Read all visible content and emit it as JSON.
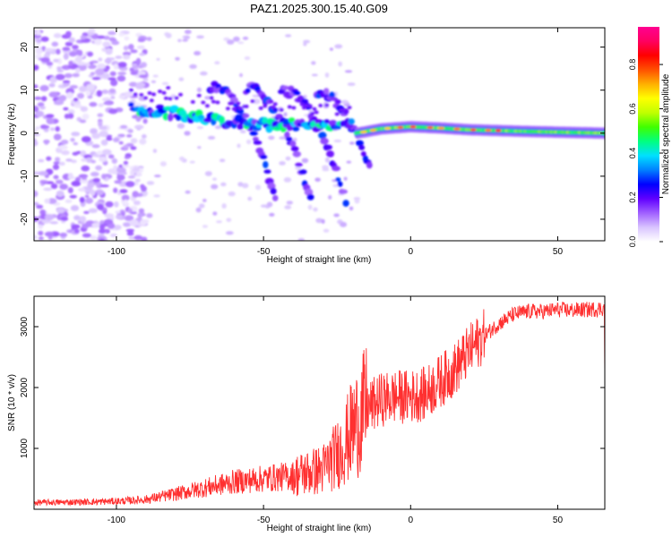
{
  "title": "PAZ1.2025.300.15.40.G09",
  "chart_data": [
    {
      "type": "heatmap",
      "name": "spectrogram",
      "xlabel": "Height of straight line (km)",
      "ylabel": "Frequency (Hz)",
      "xlim": [
        -128,
        66
      ],
      "ylim": [
        -25,
        24.5
      ],
      "xticks": [
        -100,
        -50,
        0,
        50
      ],
      "yticks": [
        -20,
        -10,
        0,
        10,
        20
      ],
      "xtick_labels": [
        "-100",
        "-50",
        "0",
        "50"
      ],
      "ytick_labels": [
        "-20",
        "-10",
        "0",
        "10",
        "20"
      ],
      "colorbar": {
        "label": "Normalized spectral amplitude",
        "range": [
          0,
          0.97
        ],
        "ticks": [
          0.0,
          0.2,
          0.4,
          0.6,
          0.8
        ],
        "tick_labels": [
          "0.0",
          "0.2",
          "0.4",
          "0.6",
          "0.8"
        ],
        "colors": [
          "#ffffff",
          "#d9c4ff",
          "#a060ff",
          "#6000ff",
          "#0000ff",
          "#0080ff",
          "#00e0ff",
          "#00ff80",
          "#40ff00",
          "#c0ff00",
          "#ffff00",
          "#ffb000",
          "#ff5000",
          "#ff0000",
          "#ff0060",
          "#ff0090"
        ]
      },
      "features": [
        {
          "name": "noise-cloud",
          "x_range": [
            -128,
            -90
          ],
          "freq_range": [
            -25,
            24
          ],
          "amplitude": 0.08
        },
        {
          "name": "main-trace",
          "points": [
            [
              -95,
              6
            ],
            [
              -90,
              5
            ],
            [
              -85,
              5
            ],
            [
              -80,
              4.5
            ],
            [
              -75,
              4
            ],
            [
              -70,
              3.5
            ],
            [
              -65,
              3
            ],
            [
              -60,
              2.5
            ],
            [
              -50,
              2
            ],
            [
              -40,
              2
            ],
            [
              -30,
              2
            ],
            [
              -20,
              2
            ]
          ],
          "amplitude": 0.3
        },
        {
          "name": "echo-traces",
          "count": 4,
          "x_range": [
            -70,
            -15
          ],
          "freq_range": [
            -15,
            12
          ],
          "amplitude": 0.2
        },
        {
          "name": "direct-signal",
          "points": [
            [
              -18,
              0
            ],
            [
              -10,
              1
            ],
            [
              0,
              1.5
            ],
            [
              10,
              1.2
            ],
            [
              20,
              0.8
            ],
            [
              40,
              0.4
            ],
            [
              66,
              0
            ]
          ],
          "amplitude": 0.85
        }
      ]
    },
    {
      "type": "line",
      "name": "snr",
      "xlabel": "Height of straight line (km)",
      "ylabel": "SNR (10 * v/v)",
      "xlim": [
        -128,
        66
      ],
      "ylim": [
        0,
        3500
      ],
      "xticks": [
        -100,
        -50,
        0,
        50
      ],
      "yticks": [
        1000,
        2000,
        3000
      ],
      "xtick_labels": [
        "-100",
        "-50",
        "0",
        "50"
      ],
      "ytick_labels": [
        "1000",
        "2000",
        "3000"
      ],
      "color": "#ff3030",
      "trend": {
        "x": [
          -128,
          -110,
          -100,
          -90,
          -80,
          -70,
          -60,
          -50,
          -40,
          -30,
          -25,
          -22,
          -20,
          -15,
          -10,
          -5,
          0,
          5,
          10,
          15,
          20,
          25,
          30,
          35,
          40,
          45,
          50,
          55,
          60,
          66
        ],
        "y": [
          110,
          120,
          130,
          160,
          250,
          350,
          450,
          500,
          550,
          650,
          900,
          1100,
          1300,
          1650,
          1800,
          1850,
          1850,
          1900,
          2100,
          2300,
          2600,
          2850,
          3050,
          3200,
          3250,
          3250,
          3280,
          3270,
          3280,
          3300
        ]
      }
    }
  ]
}
